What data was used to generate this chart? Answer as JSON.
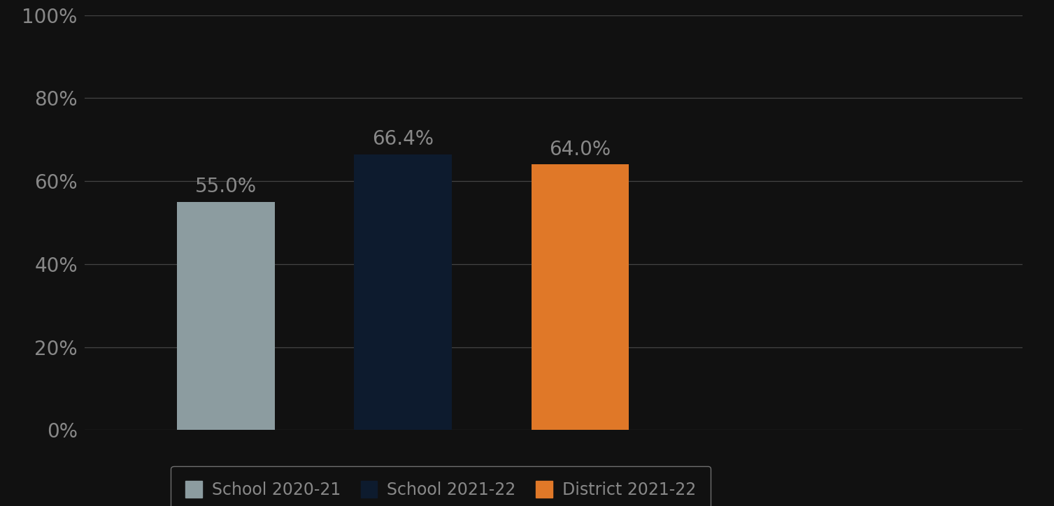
{
  "categories": [
    "School 2020-21",
    "School 2021-22",
    "District 2021-22"
  ],
  "values": [
    0.55,
    0.664,
    0.64
  ],
  "bar_labels": [
    "55.0%",
    "66.4%",
    "64.0%"
  ],
  "bar_colors": [
    "#8c9ca0",
    "#0d1b2e",
    "#e07828"
  ],
  "background_color": "#111111",
  "text_color": "#888888",
  "legend_labels": [
    "School 2020-21",
    "School 2021-22",
    "District 2021-22"
  ],
  "legend_colors": [
    "#8c9ca0",
    "#0d1b2e",
    "#e07828"
  ],
  "ylim": [
    0,
    1.0
  ],
  "yticks": [
    0,
    0.2,
    0.4,
    0.6,
    0.8,
    1.0
  ],
  "ytick_labels": [
    "0%",
    "20%",
    "40%",
    "60%",
    "80%",
    "100%"
  ],
  "bar_positions": [
    1,
    2,
    3
  ],
  "bar_width": 0.55,
  "xlim": [
    0.2,
    5.5
  ],
  "bar_label_fontsize": 20,
  "tick_fontsize": 20,
  "legend_fontsize": 17,
  "grid_color": "#444444",
  "legend_edge_color": "#888888"
}
